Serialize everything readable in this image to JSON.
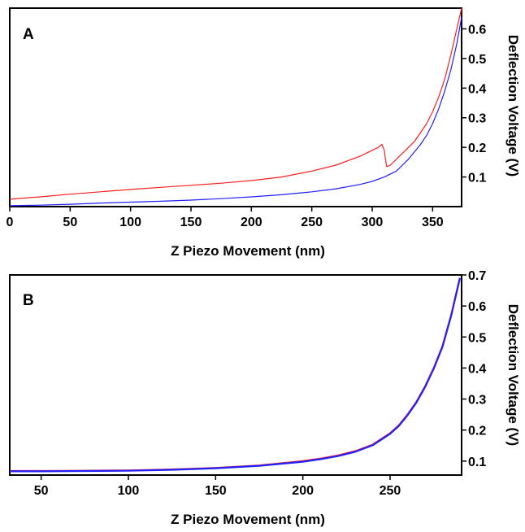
{
  "chart_data": [
    {
      "panel": "A",
      "type": "line",
      "xlabel": "Z Piezo Movement (nm)",
      "ylabel": "Deflection Voltage (V)",
      "xlim": [
        0,
        374
      ],
      "ylim": [
        0.0,
        0.67
      ],
      "xticks": [
        0,
        50,
        100,
        150,
        200,
        250,
        300,
        350
      ],
      "yticks": [
        0.1,
        0.2,
        0.3,
        0.4,
        0.5,
        0.6
      ],
      "ytick_labels": [
        "0.1",
        "0.2",
        "0.3",
        "0.4",
        "0.5",
        "0.6"
      ],
      "y_axis_side": "right",
      "grid": false,
      "series": [
        {
          "color": "#ff2020",
          "x": [
            0,
            25,
            50,
            75,
            100,
            125,
            150,
            175,
            200,
            225,
            250,
            270,
            290,
            300,
            305,
            308,
            310,
            311,
            312,
            315,
            320,
            325,
            330,
            335,
            340,
            345,
            350,
            355,
            360,
            365,
            370,
            374
          ],
          "y": [
            0.025,
            0.033,
            0.042,
            0.05,
            0.058,
            0.065,
            0.072,
            0.079,
            0.088,
            0.1,
            0.12,
            0.14,
            0.17,
            0.19,
            0.2,
            0.21,
            0.19,
            0.16,
            0.135,
            0.14,
            0.16,
            0.18,
            0.2,
            0.22,
            0.25,
            0.28,
            0.32,
            0.37,
            0.43,
            0.51,
            0.6,
            0.67
          ]
        },
        {
          "color": "#2020ff",
          "x": [
            0,
            25,
            50,
            75,
            100,
            125,
            150,
            175,
            200,
            225,
            250,
            270,
            290,
            300,
            310,
            320,
            325,
            330,
            335,
            340,
            345,
            350,
            355,
            360,
            365,
            370,
            374
          ],
          "y": [
            0.003,
            0.005,
            0.008,
            0.012,
            0.015,
            0.018,
            0.022,
            0.027,
            0.033,
            0.04,
            0.05,
            0.06,
            0.075,
            0.085,
            0.1,
            0.12,
            0.14,
            0.16,
            0.185,
            0.21,
            0.24,
            0.28,
            0.33,
            0.39,
            0.46,
            0.55,
            0.64
          ]
        }
      ]
    },
    {
      "panel": "B",
      "type": "line",
      "xlabel": "Z Piezo Movement (nm)",
      "ylabel": "Deflection Voltage (V)",
      "xlim": [
        32,
        291
      ],
      "ylim": [
        0.055,
        0.7
      ],
      "xticks": [
        50,
        100,
        150,
        200,
        250
      ],
      "yticks": [
        0.1,
        0.2,
        0.3,
        0.4,
        0.5,
        0.6,
        0.7
      ],
      "ytick_labels": [
        "0.1",
        "0.2",
        "0.3",
        "0.4",
        "0.5",
        "0.6",
        "0.7"
      ],
      "y_axis_side": "right",
      "grid": false,
      "series": [
        {
          "color": "#ff2020",
          "x": [
            32,
            50,
            75,
            100,
            125,
            150,
            175,
            200,
            210,
            220,
            230,
            240,
            250,
            255,
            260,
            265,
            270,
            275,
            280,
            285,
            290
          ],
          "y": [
            0.068,
            0.068,
            0.069,
            0.07,
            0.073,
            0.078,
            0.086,
            0.1,
            0.108,
            0.118,
            0.132,
            0.153,
            0.19,
            0.215,
            0.25,
            0.29,
            0.34,
            0.4,
            0.47,
            0.57,
            0.69
          ]
        },
        {
          "color": "#2020ff",
          "x": [
            32,
            50,
            75,
            100,
            125,
            150,
            175,
            200,
            210,
            220,
            230,
            240,
            250,
            255,
            260,
            265,
            270,
            275,
            280,
            285,
            290
          ],
          "y": [
            0.067,
            0.067,
            0.068,
            0.069,
            0.072,
            0.077,
            0.085,
            0.098,
            0.106,
            0.116,
            0.13,
            0.151,
            0.188,
            0.213,
            0.248,
            0.288,
            0.338,
            0.398,
            0.468,
            0.568,
            0.69
          ]
        }
      ]
    }
  ]
}
